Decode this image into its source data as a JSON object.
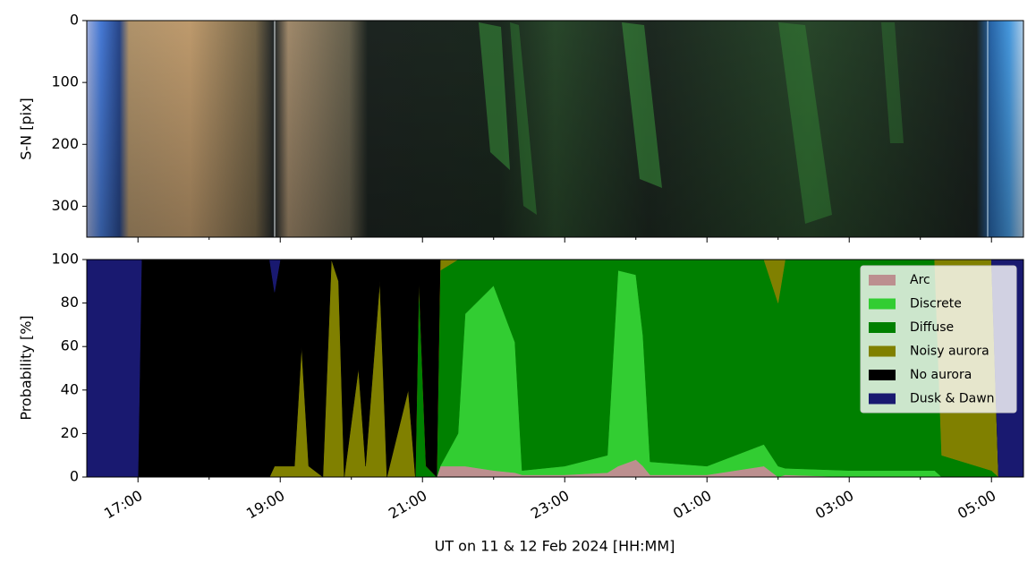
{
  "chart_data": [
    {
      "type": "image",
      "ylabel": "S-N [pix]",
      "ylim": [
        350,
        0
      ],
      "yticks": [
        0,
        100,
        200,
        300
      ]
    },
    {
      "type": "stackedarea",
      "xlabel": "UT on 11 & 12 Feb 2024 [HH:MM]",
      "ylabel": "Probability [%]",
      "xlim": [
        16.28,
        29.45
      ],
      "xticks": [
        {
          "value": 17,
          "label": "17:00"
        },
        {
          "value": 19,
          "label": "19:00"
        },
        {
          "value": 21,
          "label": "21:00"
        },
        {
          "value": 23,
          "label": "23:00"
        },
        {
          "value": 25,
          "label": "01:00"
        },
        {
          "value": 27,
          "label": "03:00"
        },
        {
          "value": 29,
          "label": "05:00"
        }
      ],
      "xminorticks": [
        18,
        20,
        22,
        24,
        26,
        28
      ],
      "ylim": [
        0,
        100
      ],
      "yticks": [
        0,
        20,
        40,
        60,
        80,
        100
      ],
      "legend": "upper right",
      "x": [
        16.28,
        16.9,
        17.0,
        17.05,
        18.0,
        18.85,
        18.92,
        19.0,
        19.2,
        19.3,
        19.4,
        19.6,
        19.72,
        19.82,
        19.9,
        20.1,
        20.2,
        20.4,
        20.5,
        20.8,
        20.9,
        20.95,
        21.05,
        21.2,
        21.25,
        21.5,
        21.6,
        22.0,
        22.3,
        22.4,
        23.0,
        23.6,
        23.75,
        24.0,
        24.1,
        24.2,
        25.0,
        25.8,
        26.0,
        26.1,
        27.0,
        28.2,
        28.3,
        29.0,
        29.1,
        29.45
      ],
      "series": [
        {
          "name": "Arc",
          "color": "#bc8f8f",
          "values": [
            0,
            0,
            0,
            0,
            0,
            0,
            0,
            0,
            0,
            0,
            0,
            0,
            0,
            0,
            0,
            0,
            0,
            0,
            0,
            0,
            0,
            0,
            0,
            0,
            5,
            5,
            5,
            3,
            2,
            1,
            1,
            2,
            5,
            8,
            5,
            1,
            1,
            5,
            0,
            1,
            0,
            0,
            0,
            0,
            0,
            0
          ]
        },
        {
          "name": "Discrete",
          "color": "#32cd32",
          "values": [
            0,
            0,
            0,
            0,
            0,
            0,
            0,
            0,
            0,
            0,
            0,
            0,
            0,
            0,
            0,
            0,
            0,
            0,
            0,
            0,
            0,
            0,
            0,
            0,
            0,
            15,
            70,
            85,
            60,
            2,
            4,
            8,
            90,
            85,
            60,
            6,
            4,
            10,
            5,
            3,
            3,
            3,
            0,
            0,
            0,
            0
          ]
        },
        {
          "name": "Diffuse",
          "color": "#008000",
          "values": [
            0,
            0,
            0,
            0,
            0,
            0,
            0,
            0,
            0,
            0,
            0,
            0,
            0,
            0,
            0,
            0,
            0,
            0,
            0,
            0,
            0,
            90,
            5,
            0,
            90,
            80,
            25,
            12,
            38,
            97,
            95,
            90,
            5,
            7,
            35,
            93,
            95,
            85,
            75,
            96,
            97,
            97,
            10,
            3,
            0,
            0
          ]
        },
        {
          "name": "Noisy aurora",
          "color": "#808000",
          "values": [
            0,
            0,
            0,
            0,
            0,
            0,
            5,
            5,
            5,
            60,
            5,
            0,
            100,
            90,
            0,
            50,
            5,
            90,
            0,
            40,
            0,
            0,
            0,
            0,
            5,
            0,
            0,
            0,
            0,
            0,
            0,
            0,
            0,
            0,
            0,
            0,
            0,
            0,
            20,
            0,
            0,
            0,
            90,
            97,
            0,
            0
          ]
        },
        {
          "name": "No aurora",
          "color": "#000000",
          "values": [
            0,
            0,
            0,
            100,
            100,
            100,
            80,
            95,
            95,
            40,
            95,
            100,
            0,
            10,
            100,
            50,
            95,
            10,
            100,
            60,
            100,
            10,
            95,
            100,
            0,
            0,
            0,
            0,
            0,
            0,
            0,
            0,
            0,
            0,
            0,
            0,
            0,
            0,
            0,
            0,
            0,
            0,
            0,
            0,
            0,
            0
          ]
        },
        {
          "name": "Dusk & Dawn",
          "color": "#191970",
          "values": [
            100,
            100,
            100,
            0,
            0,
            0,
            15,
            0,
            0,
            0,
            0,
            0,
            0,
            0,
            0,
            0,
            0,
            0,
            0,
            0,
            0,
            0,
            0,
            0,
            0,
            0,
            0,
            0,
            0,
            0,
            0,
            0,
            0,
            0,
            0,
            0,
            0,
            0,
            0,
            0,
            0,
            0,
            0,
            0,
            100,
            100
          ]
        }
      ]
    }
  ]
}
